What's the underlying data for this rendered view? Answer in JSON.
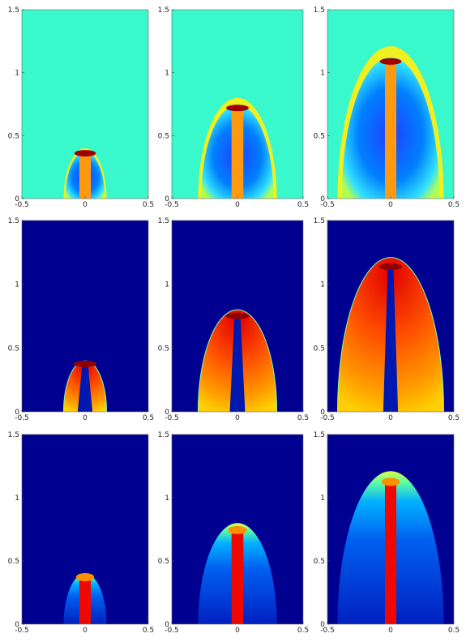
{
  "chart_data": [
    {
      "type": "image",
      "xlim": [
        -0.5,
        0.5
      ],
      "ylim": [
        0,
        1.5
      ],
      "xticks": [
        -0.5,
        0,
        0.5
      ],
      "yticks": [
        0,
        0.5,
        1,
        1.5
      ]
    },
    {
      "type": "image",
      "xlim": [
        -0.5,
        0.5
      ],
      "ylim": [
        0,
        1.5
      ],
      "xticks": [
        -0.5,
        0,
        0.5
      ],
      "yticks": [
        0,
        0.5,
        1,
        1.5
      ]
    },
    {
      "type": "image",
      "xlim": [
        -0.5,
        0.5
      ],
      "ylim": [
        0,
        1.5
      ],
      "xticks": [
        -0.5,
        0,
        0.5
      ],
      "yticks": [
        0,
        0.5,
        1,
        1.5
      ]
    },
    {
      "type": "image",
      "xlim": [
        -0.5,
        0.5
      ],
      "ylim": [
        0,
        1.5
      ],
      "xticks": [
        -0.5,
        0,
        0.5
      ],
      "yticks": [
        0,
        0.5,
        1,
        1.5
      ]
    },
    {
      "type": "image",
      "xlim": [
        -0.5,
        0.5
      ],
      "ylim": [
        0,
        1.5
      ],
      "xticks": [
        -0.5,
        0,
        0.5
      ],
      "yticks": [
        0,
        0.5,
        1,
        1.5
      ]
    },
    {
      "type": "image",
      "xlim": [
        -0.5,
        0.5
      ],
      "ylim": [
        0,
        1.5
      ],
      "xticks": [
        -0.5,
        0,
        0.5
      ],
      "yticks": [
        0,
        0.5,
        1,
        1.5
      ]
    },
    {
      "type": "image",
      "xlim": [
        -0.5,
        0.5
      ],
      "ylim": [
        0,
        1.5
      ],
      "xticks": [
        -0.5,
        0,
        0.5
      ],
      "yticks": [
        0,
        0.5,
        1,
        1.5
      ]
    },
    {
      "type": "image",
      "xlim": [
        -0.5,
        0.5
      ],
      "ylim": [
        0,
        1.5
      ],
      "xticks": [
        -0.5,
        0,
        0.5
      ],
      "yticks": [
        0,
        0.5,
        1,
        1.5
      ]
    },
    {
      "type": "image",
      "xlim": [
        -0.5,
        0.5
      ],
      "ylim": [
        0,
        1.5
      ],
      "xticks": [
        -0.5,
        0,
        0.5
      ],
      "yticks": [
        0,
        0.5,
        1,
        1.5
      ]
    }
  ]
}
